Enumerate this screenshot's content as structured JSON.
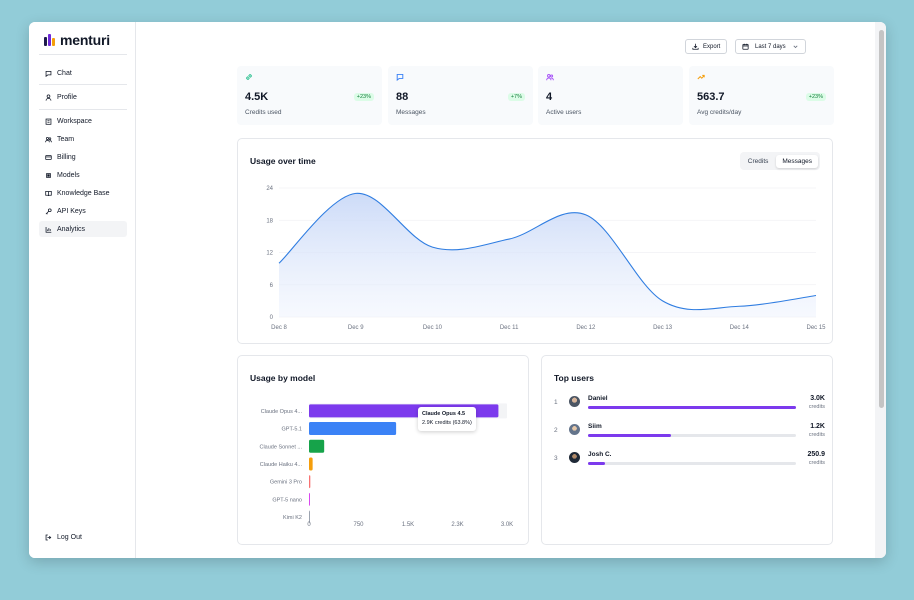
{
  "brand": {
    "name": "menturi"
  },
  "nav": {
    "chat": "Chat",
    "profile": "Profile",
    "workspace": "Workspace",
    "team": "Team",
    "billing": "Billing",
    "models": "Models",
    "knowledge_base": "Knowledge Base",
    "api_keys": "API Keys",
    "analytics": "Analytics",
    "logout": "Log Out"
  },
  "header": {
    "export_label": "Export",
    "range_label": "Last 7 days"
  },
  "stats": [
    {
      "value": "4.5K",
      "label": "Credits used",
      "change": "+23%",
      "icon": "link-icon",
      "color": "#10b981"
    },
    {
      "value": "88",
      "label": "Messages",
      "change": "+7%",
      "icon": "message-icon",
      "color": "#3b82f6"
    },
    {
      "value": "4",
      "label": "Active users",
      "change": "",
      "icon": "users-icon",
      "color": "#a855f7"
    },
    {
      "value": "563.7",
      "label": "Avg credits/day",
      "change": "+23%",
      "icon": "trend-icon",
      "color": "#f59e0b"
    }
  ],
  "usage_chart": {
    "title": "Usage over time",
    "toggle": {
      "credits": "Credits",
      "messages": "Messages",
      "selected": "Messages"
    }
  },
  "model_chart": {
    "title": "Usage by model"
  },
  "tooltip": {
    "title": "Claude Opus 4.5",
    "detail": "2.9K credits (63.8%)"
  },
  "top_users": {
    "title": "Top users",
    "unit_label": "credits",
    "rows": [
      {
        "rank": "1",
        "name": "Daniel",
        "credits": "3.0K",
        "share": 1.0
      },
      {
        "rank": "2",
        "name": "Siim",
        "credits": "1.2K",
        "share": 0.4
      },
      {
        "rank": "3",
        "name": "Josh C.",
        "credits": "250.9",
        "share": 0.083
      }
    ]
  },
  "chart_data": [
    {
      "type": "area",
      "title": "Usage over time",
      "x": [
        "Dec 8",
        "Dec 9",
        "Dec 10",
        "Dec 11",
        "Dec 12",
        "Dec 13",
        "Dec 14",
        "Dec 15"
      ],
      "yticks": [
        0,
        6,
        12,
        18,
        24
      ],
      "ylim": [
        0,
        24
      ],
      "series": [
        {
          "name": "Messages",
          "values": [
            10,
            23,
            13,
            14.5,
            19,
            3,
            2,
            4
          ]
        }
      ],
      "color": "#2f7de1"
    },
    {
      "type": "bar",
      "orientation": "horizontal",
      "title": "Usage by model",
      "categories": [
        "Claude Opus 4...",
        "GPT-5.1",
        "Claude Sonnet ...",
        "Claude Haiku 4...",
        "Gemini 3 Pro",
        "GPT-5 nano",
        "Kimi K2"
      ],
      "values": [
        2870,
        1320,
        230,
        55,
        20,
        15,
        5
      ],
      "colors": [
        "#7c3aed",
        "#3b82f6",
        "#16a34a",
        "#f59e0b",
        "#f87171",
        "#d946ef",
        "#9ca3af"
      ],
      "xticks": [
        0,
        750,
        1500,
        2250,
        3000
      ],
      "xtick_labels": [
        "0",
        "750",
        "1.5K",
        "2.3K",
        "3.0K"
      ],
      "xlim": [
        0,
        3000
      ]
    }
  ]
}
